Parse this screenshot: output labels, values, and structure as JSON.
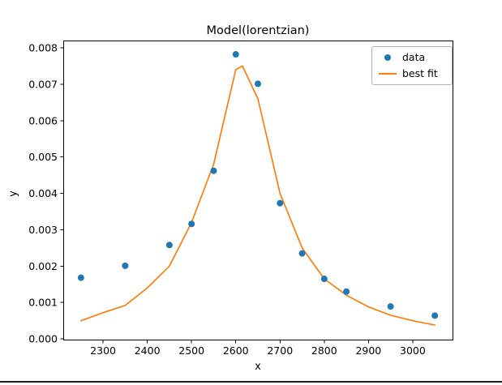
{
  "chart_data": {
    "type": "scatter",
    "title": "Model(lorentzian)",
    "xlabel": "x",
    "ylabel": "y",
    "xlim": [
      2210,
      3090
    ],
    "ylim": [
      -2e-05,
      0.0082
    ],
    "xticks": [
      2300,
      2400,
      2500,
      2600,
      2700,
      2800,
      2900,
      3000
    ],
    "yticks": [
      0.0,
      0.001,
      0.002,
      0.003,
      0.004,
      0.005,
      0.006,
      0.007,
      0.008
    ],
    "ytick_decimals": 3,
    "grid": false,
    "legend_position": "upper right",
    "series": [
      {
        "name": "data",
        "type": "scatter",
        "color": "#1f77b4",
        "x": [
          2250,
          2350,
          2450,
          2500,
          2550,
          2600,
          2650,
          2700,
          2750,
          2800,
          2850,
          2950,
          3050
        ],
        "y": [
          0.00168,
          0.00201,
          0.00258,
          0.00316,
          0.00462,
          0.00782,
          0.00701,
          0.00373,
          0.00235,
          0.00165,
          0.0013,
          0.00089,
          0.00064
        ]
      },
      {
        "name": "best fit",
        "type": "line",
        "color": "#ff7f0e",
        "x": [
          2250,
          2300,
          2350,
          2400,
          2450,
          2500,
          2550,
          2600,
          2615,
          2650,
          2700,
          2750,
          2800,
          2850,
          2900,
          2950,
          3000,
          3050
        ],
        "y": [
          0.0005,
          0.00072,
          0.00092,
          0.0014,
          0.002,
          0.0032,
          0.0048,
          0.0074,
          0.0075,
          0.0066,
          0.004,
          0.0025,
          0.00165,
          0.0012,
          0.00088,
          0.00065,
          0.0005,
          0.00038
        ]
      }
    ]
  },
  "colors": {
    "scatter": "#1f77b4",
    "line": "#ff7f0e",
    "axes": "#000000",
    "legend_border": "#b3b3b3"
  }
}
